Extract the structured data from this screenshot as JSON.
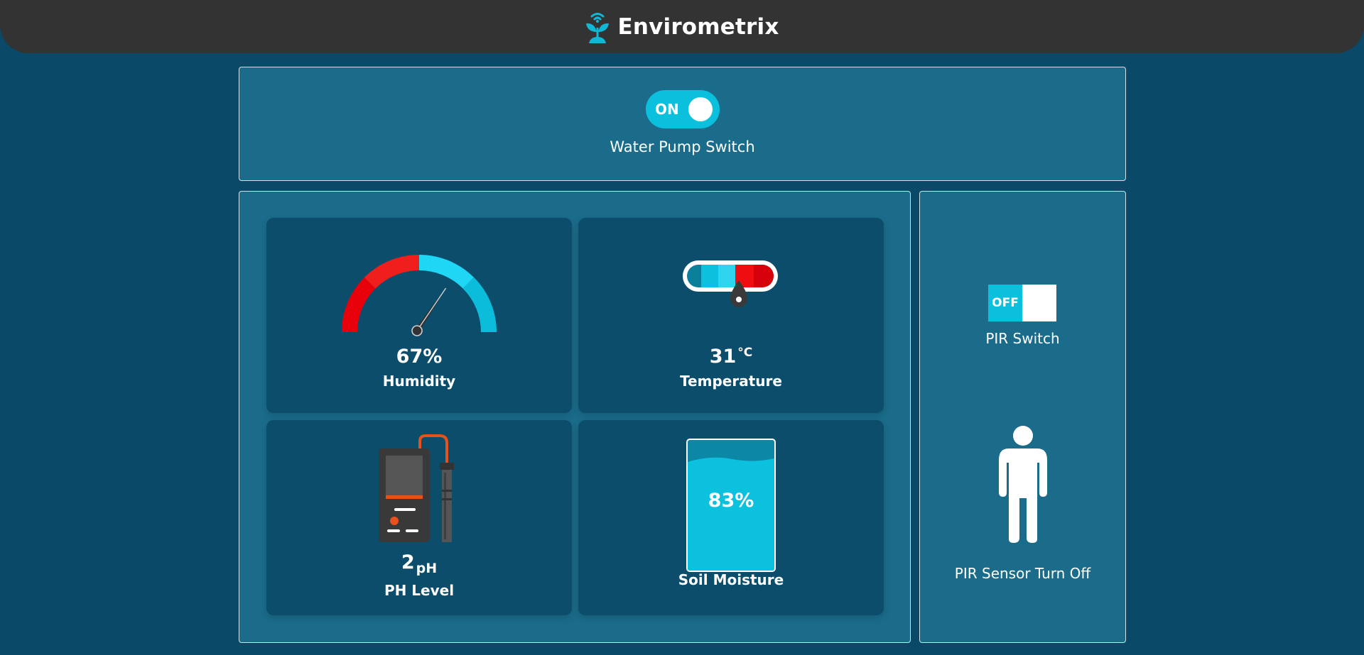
{
  "header": {
    "title": "Envirometrix",
    "logo_icon": "plant-wifi-icon"
  },
  "pump": {
    "toggle_text": "ON",
    "state": "on",
    "label": "Water Pump Switch"
  },
  "humidity": {
    "value": "67%",
    "label": "Humidity",
    "icon": "gauge-icon"
  },
  "temperature": {
    "value": "31",
    "unit": "°C",
    "label": "Temperature",
    "icon": "thermometer-icon"
  },
  "ph": {
    "value": "2",
    "unit": "pH",
    "label": "PH Level",
    "icon": "ph-meter-icon"
  },
  "soil": {
    "value": "83%",
    "fill_fraction": 0.83,
    "label": "Soil Moisture",
    "icon": "water-tank-icon"
  },
  "pir": {
    "toggle_text": "OFF",
    "state": "off",
    "switch_label": "PIR Switch",
    "status": "PIR Sensor Turn Off",
    "icon": "person-icon"
  },
  "colors": {
    "background": "#0a4a68",
    "panel": "#1a6c8a",
    "card": "#0b4d6b",
    "accent": "#0bc0dc",
    "danger": "#e8000b",
    "header": "#333333"
  }
}
